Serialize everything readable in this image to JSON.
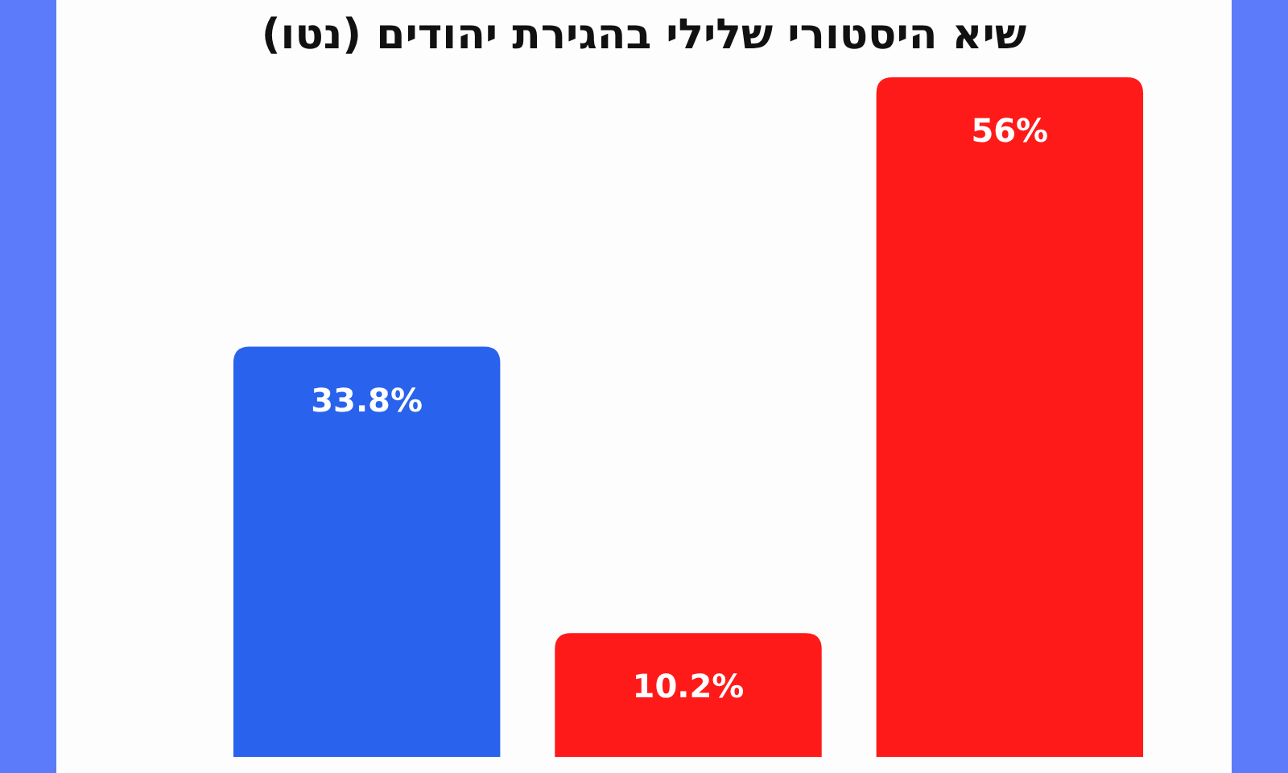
{
  "chart_data": {
    "type": "bar",
    "title": "שיא היסטורי שלילי בהגירת יהודים (נטו)",
    "categories": [
      null,
      null,
      null
    ],
    "values": [
      33.8,
      10.2,
      56
    ],
    "colors": [
      "#2962ec",
      "#ff1a1a",
      "#ff1a1a"
    ],
    "value_labels": [
      "33.8%",
      "10.2%",
      "56%"
    ]
  }
}
